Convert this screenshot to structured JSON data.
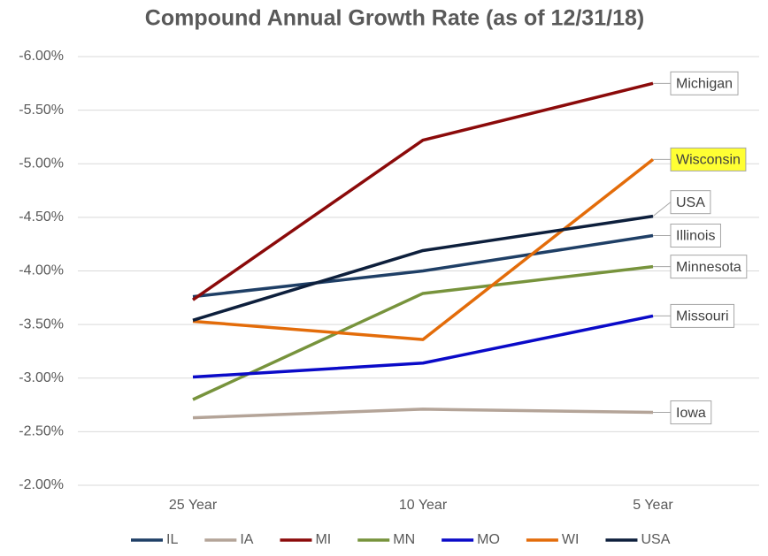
{
  "chart_data": {
    "type": "line",
    "title": "Compound Annual Growth Rate (as of 12/31/18)",
    "categories": [
      "25 Year",
      "10 Year",
      "5 Year"
    ],
    "ylim": [
      -2,
      -6
    ],
    "yticks": [
      {
        "value": -6,
        "label": "-6.00%"
      },
      {
        "value": -5.5,
        "label": "-5.50%"
      },
      {
        "value": -5,
        "label": "-5.00%"
      },
      {
        "value": -4.5,
        "label": "-4.50%"
      },
      {
        "value": -4,
        "label": "-4.00%"
      },
      {
        "value": -3.5,
        "label": "-3.50%"
      },
      {
        "value": -3,
        "label": "-3.00%"
      },
      {
        "value": -2.5,
        "label": "-2.50%"
      },
      {
        "value": -2,
        "label": "-2.00%"
      }
    ],
    "grid": true,
    "legend": "bottom",
    "series": [
      {
        "name": "IL",
        "color": "#1f3f66",
        "values": [
          -3.76,
          -4.0,
          -4.33
        ],
        "end_label": "Illinois"
      },
      {
        "name": "IA",
        "color": "#b4a498",
        "values": [
          -2.63,
          -2.71,
          -2.68
        ],
        "end_label": "Iowa"
      },
      {
        "name": "MI",
        "color": "#8b0a0a",
        "values": [
          -3.73,
          -5.22,
          -5.75
        ],
        "end_label": "Michigan"
      },
      {
        "name": "MN",
        "color": "#77933c",
        "values": [
          -2.8,
          -3.79,
          -4.04
        ],
        "end_label": "Minnesota"
      },
      {
        "name": "MO",
        "color": "#0a0ac8",
        "values": [
          -3.01,
          -3.14,
          -3.58
        ],
        "end_label": "Missouri"
      },
      {
        "name": "WI",
        "color": "#e36c0a",
        "values": [
          -3.53,
          -3.36,
          -5.04
        ],
        "end_label": "Wisconsin",
        "label_highlight": "#ffff33"
      },
      {
        "name": "USA",
        "color": "#0d1f3c",
        "values": [
          -3.54,
          -4.19,
          -4.51
        ],
        "end_label": "USA"
      }
    ]
  }
}
